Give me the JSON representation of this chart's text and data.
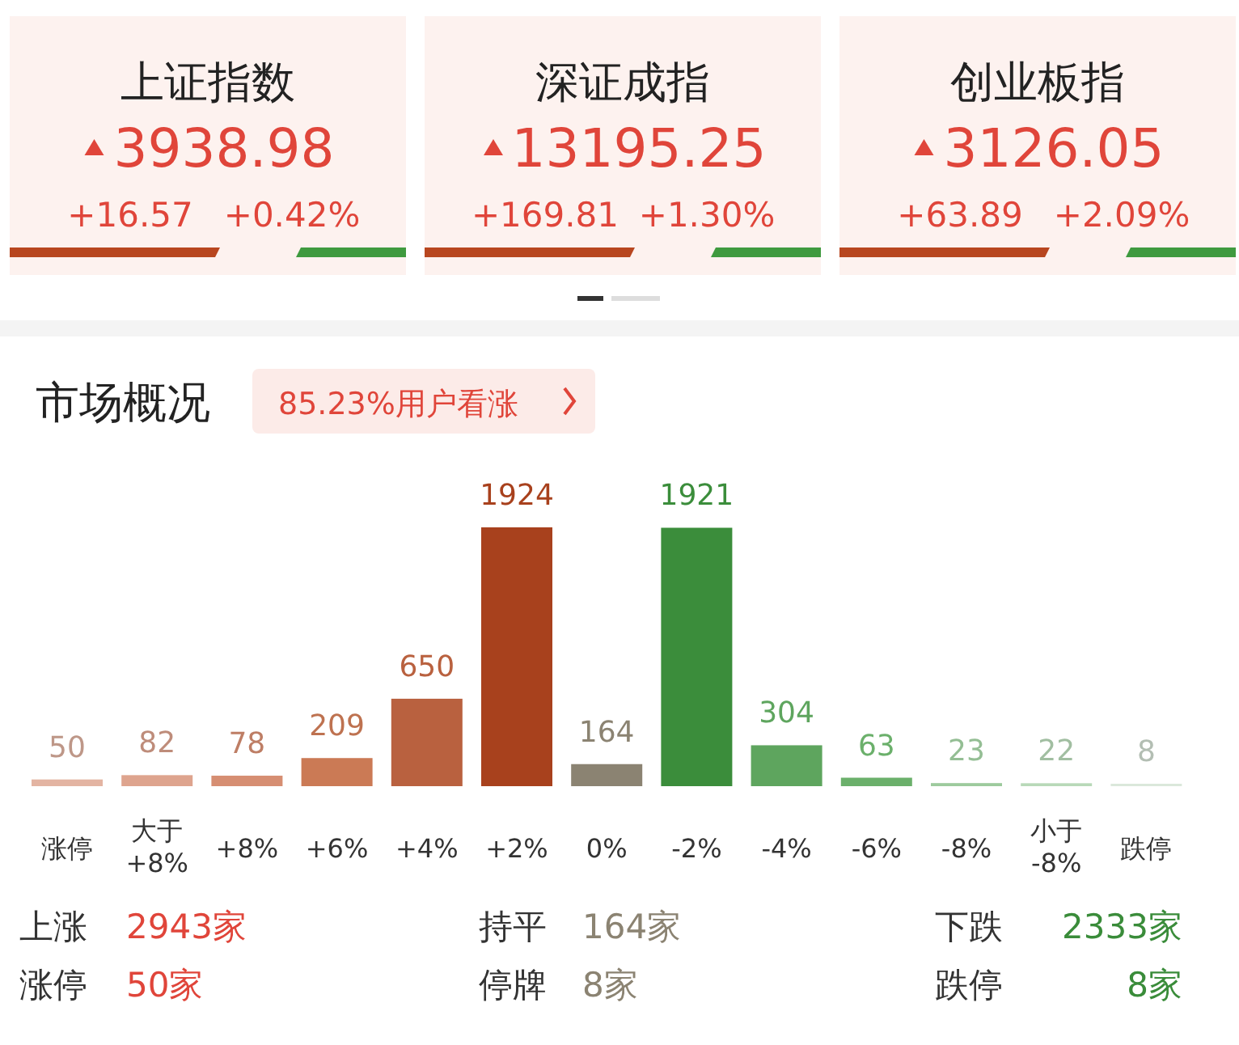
{
  "chart_data": [
    {
      "type": "other",
      "title": "上证指数",
      "annotations": [
        "3938.98",
        "+16.57",
        "+0.42%"
      ]
    },
    {
      "type": "other",
      "title": "深证成指",
      "annotations": [
        "13195.25",
        "+169.81",
        "+1.30%"
      ]
    },
    {
      "type": "other",
      "title": "创业板指",
      "annotations": [
        "3126.05",
        "+63.89",
        "+2.09%"
      ]
    },
    {
      "type": "bar",
      "title": "市场概况",
      "categories": [
        "涨停",
        "大于\n+8%",
        "+8%",
        "+6%",
        "+4%",
        "+2%",
        "0%",
        "-2%",
        "-4%",
        "-6%",
        "-8%",
        "小于\n-8%",
        "跌停"
      ],
      "values": [
        50,
        82,
        78,
        209,
        650,
        1924,
        164,
        1921,
        304,
        63,
        23,
        22,
        8
      ],
      "colors": [
        "#e3b4a2",
        "#dea48e",
        "#d68e72",
        "#cb7a55",
        "#b9613f",
        "#a8411d",
        "#8b8372",
        "#3b8d3b",
        "#5ea55e",
        "#6bb06b",
        "#9dca9d",
        "#b8d9b8",
        "#dbe8db"
      ],
      "data_labels": true,
      "annotations": [
        "85.23%用户看涨",
        "上涨",
        "2943家",
        "持平",
        "164家",
        "下跌",
        "2333家",
        "涨停",
        "50家",
        "停牌",
        "8家",
        "跌停",
        "8家"
      ]
    }
  ]
}
